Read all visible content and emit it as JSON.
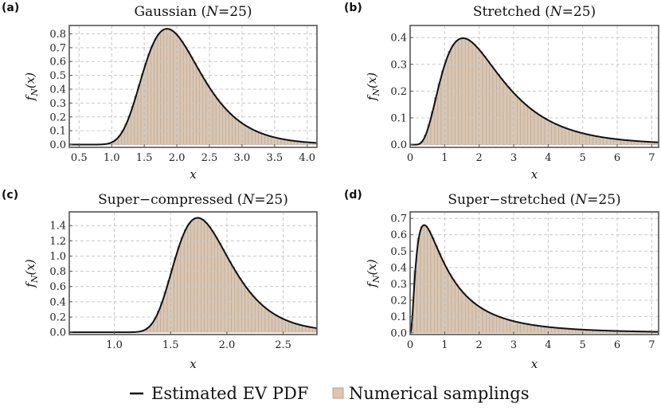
{
  "figure": {
    "legend": {
      "line_label": "Estimated EV PDF",
      "bar_label": "Numerical samplings"
    },
    "colors": {
      "bar_fill": "#d9c7b3",
      "bar_edge": "#b3a08c",
      "curve": "#111111",
      "frame": "#555555",
      "grid": "#c8c8c8"
    }
  },
  "chart_data": [
    {
      "panel": "(a)",
      "type": "bar",
      "title": "Gaussian (N=25)",
      "title_parts": {
        "main": "Gaussian (",
        "var": "N",
        "rest": "=25)"
      },
      "xlabel": "x",
      "ylabel": "f_N(x)",
      "xlim": [
        0.35,
        4.15
      ],
      "ylim": [
        -0.02,
        0.86
      ],
      "xticks": [
        "0.5",
        "1.0",
        "1.5",
        "2.0",
        "2.5",
        "3.0",
        "3.5",
        "4.0"
      ],
      "yticks": [
        "0.0",
        "0.1",
        "0.2",
        "0.3",
        "0.4",
        "0.5",
        "0.6",
        "0.7",
        "0.8"
      ],
      "distribution": {
        "kind": "gumbel",
        "mode": 1.85,
        "scale": 0.44
      },
      "bin_width": 0.05
    },
    {
      "panel": "(b)",
      "type": "bar",
      "title": "Stretched (N=25)",
      "title_parts": {
        "main": "Stretched (",
        "var": "N",
        "rest": "=25)"
      },
      "xlabel": "x",
      "ylabel": "f_N(x)",
      "xlim": [
        0,
        7.2
      ],
      "ylim": [
        -0.01,
        0.445
      ],
      "xticks": [
        "0",
        "1",
        "2",
        "3",
        "4",
        "5",
        "6",
        "7"
      ],
      "yticks": [
        "0.0",
        "0.1",
        "0.2",
        "0.3",
        "0.4"
      ],
      "distribution": {
        "kind": "lognormal",
        "mu": 0.74,
        "sigma": 0.56
      },
      "bin_width": 0.1
    },
    {
      "panel": "(c)",
      "type": "bar",
      "title": "Super−compressed (N=25)",
      "title_parts": {
        "main": "Super−compressed (",
        "var": "N",
        "rest": "=25)"
      },
      "xlabel": "x",
      "ylabel": "f_N(x)",
      "xlim": [
        0.6,
        2.8
      ],
      "ylim": [
        -0.03,
        1.58
      ],
      "xticks": [
        "1.0",
        "1.5",
        "2.0",
        "2.5"
      ],
      "yticks": [
        "0.0",
        "0.2",
        "0.4",
        "0.6",
        "0.8",
        "1.0",
        "1.2",
        "1.4"
      ],
      "distribution": {
        "kind": "gumbel",
        "mode": 1.74,
        "scale": 0.245
      },
      "bin_width": 0.03
    },
    {
      "panel": "(d)",
      "type": "bar",
      "title": "Super−stretched (N=25)",
      "title_parts": {
        "main": "Super−stretched (",
        "var": "N",
        "rest": "=25)"
      },
      "xlabel": "x",
      "ylabel": "f_N(x)",
      "xlim": [
        0,
        7.2
      ],
      "ylim": [
        -0.01,
        0.74
      ],
      "xticks": [
        "0",
        "1",
        "2",
        "3",
        "4",
        "5",
        "6",
        "7"
      ],
      "yticks": [
        "0.0",
        "0.1",
        "0.2",
        "0.3",
        "0.4",
        "0.5",
        "0.6",
        "0.7"
      ],
      "distribution": {
        "kind": "lognormal",
        "mu": 0.0,
        "sigma": 0.95
      },
      "bin_width": 0.1
    }
  ]
}
